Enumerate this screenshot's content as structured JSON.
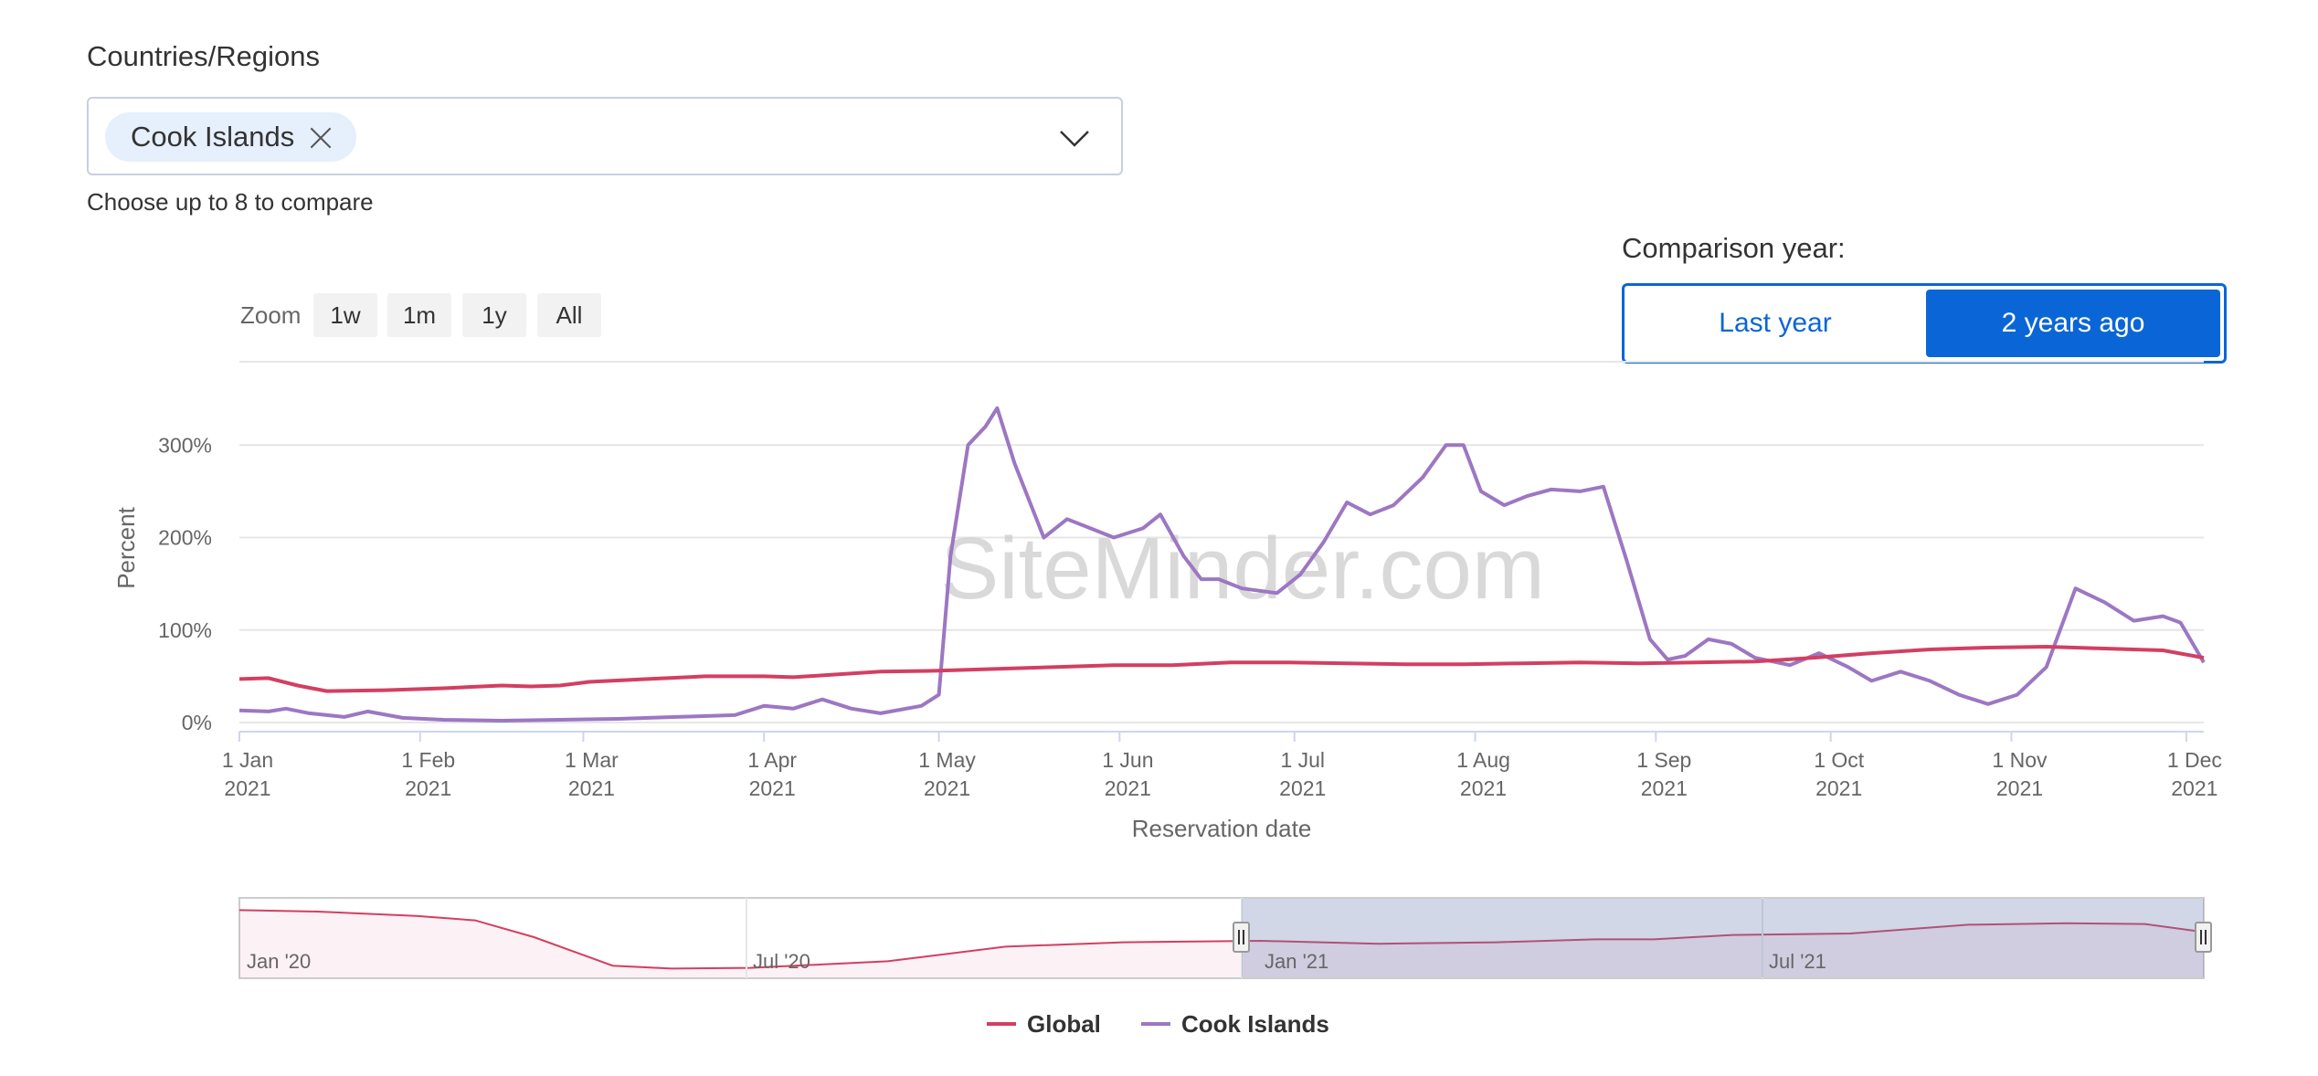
{
  "filter": {
    "label": "Countries/Regions",
    "selected_chip": "Cook Islands",
    "hint": "Choose up to 8 to compare"
  },
  "comparison": {
    "label": "Comparison year:",
    "options": [
      "Last year",
      "2 years ago"
    ],
    "selected": "2 years ago"
  },
  "zoom": {
    "label": "Zoom",
    "buttons": [
      "1w",
      "1m",
      "1y",
      "All"
    ]
  },
  "watermark": "SiteMinder.com",
  "colors": {
    "global": "#d23f62",
    "cook_islands": "#9c77c2",
    "accent": "#0a66d6"
  },
  "chart_data": {
    "type": "line",
    "ylabel": "Percent",
    "xlabel": "Reservation date",
    "ylim": [
      0,
      400
    ],
    "yticks": [
      0,
      100,
      200,
      300
    ],
    "ytick_labels": [
      "0%",
      "100%",
      "200%",
      "300%"
    ],
    "xlim": [
      0,
      337
    ],
    "xticks": [
      {
        "day": 0,
        "line1": "1 Jan",
        "line2": "2021"
      },
      {
        "day": 31,
        "line1": "1 Feb",
        "line2": "2021"
      },
      {
        "day": 59,
        "line1": "1 Mar",
        "line2": "2021"
      },
      {
        "day": 90,
        "line1": "1 Apr",
        "line2": "2021"
      },
      {
        "day": 120,
        "line1": "1 May",
        "line2": "2021"
      },
      {
        "day": 151,
        "line1": "1 Jun",
        "line2": "2021"
      },
      {
        "day": 181,
        "line1": "1 Jul",
        "line2": "2021"
      },
      {
        "day": 212,
        "line1": "1 Aug",
        "line2": "2021"
      },
      {
        "day": 243,
        "line1": "1 Sep",
        "line2": "2021"
      },
      {
        "day": 273,
        "line1": "1 Oct",
        "line2": "2021"
      },
      {
        "day": 304,
        "line1": "1 Nov",
        "line2": "2021"
      },
      {
        "day": 334,
        "line1": "1 Dec",
        "line2": "2021"
      }
    ],
    "grid": true,
    "legend_position": "bottom-center",
    "series": [
      {
        "name": "Global",
        "color": "#d23f62",
        "points": [
          [
            0,
            47
          ],
          [
            5,
            48
          ],
          [
            10,
            40
          ],
          [
            15,
            34
          ],
          [
            25,
            35
          ],
          [
            35,
            37
          ],
          [
            45,
            40
          ],
          [
            50,
            39
          ],
          [
            55,
            40
          ],
          [
            60,
            44
          ],
          [
            70,
            47
          ],
          [
            80,
            50
          ],
          [
            90,
            50
          ],
          [
            95,
            49
          ],
          [
            100,
            51
          ],
          [
            110,
            55
          ],
          [
            120,
            56
          ],
          [
            130,
            58
          ],
          [
            140,
            60
          ],
          [
            150,
            62
          ],
          [
            160,
            62
          ],
          [
            170,
            65
          ],
          [
            180,
            65
          ],
          [
            190,
            64
          ],
          [
            200,
            63
          ],
          [
            210,
            63
          ],
          [
            220,
            64
          ],
          [
            230,
            65
          ],
          [
            240,
            64
          ],
          [
            250,
            65
          ],
          [
            260,
            66
          ],
          [
            270,
            70
          ],
          [
            280,
            75
          ],
          [
            290,
            79
          ],
          [
            300,
            81
          ],
          [
            310,
            82
          ],
          [
            320,
            80
          ],
          [
            330,
            78
          ],
          [
            337,
            70
          ]
        ]
      },
      {
        "name": "Cook Islands",
        "color": "#9c77c2",
        "points": [
          [
            0,
            13
          ],
          [
            5,
            12
          ],
          [
            8,
            15
          ],
          [
            12,
            10
          ],
          [
            18,
            6
          ],
          [
            22,
            12
          ],
          [
            28,
            5
          ],
          [
            35,
            3
          ],
          [
            45,
            2
          ],
          [
            55,
            3
          ],
          [
            65,
            4
          ],
          [
            75,
            6
          ],
          [
            85,
            8
          ],
          [
            90,
            18
          ],
          [
            95,
            15
          ],
          [
            100,
            25
          ],
          [
            105,
            15
          ],
          [
            110,
            10
          ],
          [
            117,
            18
          ],
          [
            120,
            30
          ],
          [
            122,
            180
          ],
          [
            125,
            300
          ],
          [
            128,
            320
          ],
          [
            130,
            340
          ],
          [
            133,
            280
          ],
          [
            138,
            200
          ],
          [
            142,
            220
          ],
          [
            146,
            210
          ],
          [
            150,
            200
          ],
          [
            155,
            210
          ],
          [
            158,
            225
          ],
          [
            162,
            180
          ],
          [
            165,
            155
          ],
          [
            168,
            155
          ],
          [
            172,
            145
          ],
          [
            178,
            140
          ],
          [
            182,
            160
          ],
          [
            186,
            195
          ],
          [
            190,
            238
          ],
          [
            194,
            225
          ],
          [
            198,
            235
          ],
          [
            203,
            265
          ],
          [
            207,
            300
          ],
          [
            210,
            300
          ],
          [
            213,
            250
          ],
          [
            217,
            235
          ],
          [
            221,
            245
          ],
          [
            225,
            252
          ],
          [
            230,
            250
          ],
          [
            234,
            255
          ],
          [
            238,
            175
          ],
          [
            242,
            90
          ],
          [
            245,
            68
          ],
          [
            248,
            72
          ],
          [
            252,
            90
          ],
          [
            256,
            85
          ],
          [
            260,
            70
          ],
          [
            266,
            62
          ],
          [
            271,
            75
          ],
          [
            276,
            60
          ],
          [
            280,
            45
          ],
          [
            285,
            55
          ],
          [
            290,
            45
          ],
          [
            295,
            30
          ],
          [
            300,
            20
          ],
          [
            305,
            30
          ],
          [
            310,
            60
          ],
          [
            315,
            145
          ],
          [
            320,
            130
          ],
          [
            325,
            110
          ],
          [
            330,
            115
          ],
          [
            333,
            108
          ],
          [
            337,
            65
          ]
        ]
      }
    ],
    "navigator": {
      "labels": [
        "Jan '20",
        "Jul '20",
        "Jan '21",
        "Jul '21"
      ],
      "series": "Global"
    }
  }
}
